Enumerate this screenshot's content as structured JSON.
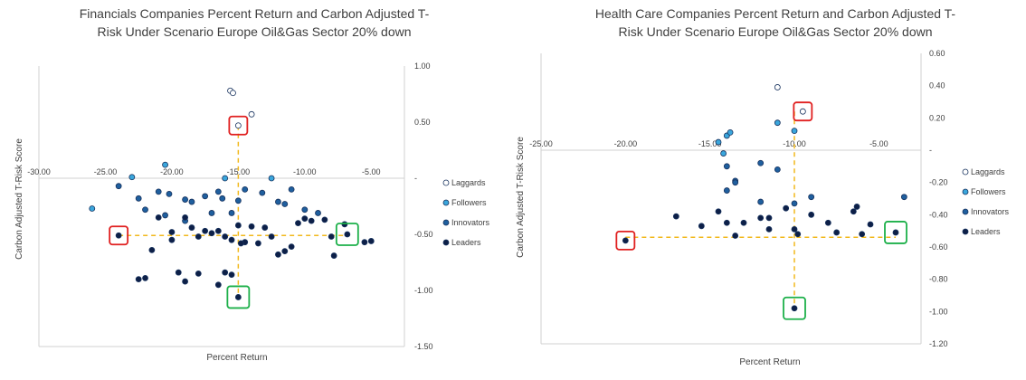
{
  "colors": {
    "Laggards": "#ffffff",
    "Followers": "#3aa6dc",
    "Innovators": "#1f5f9e",
    "Leaders": "#0d1f47",
    "guide": "#f2b81c",
    "red_box": "#e02020",
    "green_box": "#1db04a",
    "axis": "#d0d0d0",
    "text": "#404040"
  },
  "chart_data": [
    {
      "type": "scatter",
      "title": "Financials Companies Percent Return and Carbon Adjusted T-Risk Under Scenario Europe Oil&Gas Sector 20% down",
      "title_lines": [
        "Financials Companies Percent Return and Carbon Adjusted T-",
        "Risk Under Scenario Europe Oil&Gas Sector 20% down"
      ],
      "xlabel": "Percent Return",
      "ylabel": "Carbon Adjusted T-Risk Score",
      "xlim": [
        -30,
        -2.5
      ],
      "ylim": [
        -1.5,
        1.0
      ],
      "xticks": [
        "-30.00",
        "-25.00",
        "-20.00",
        "-15.00",
        "-10.00",
        "-5.00"
      ],
      "yticks": [
        "1.00",
        "0.50",
        "-",
        "-0.50",
        "-1.00",
        "-1.50"
      ],
      "legend": [
        "Laggards",
        "Followers",
        "Innovators",
        "Leaders"
      ],
      "legend_position": "right",
      "series": [
        {
          "name": "Laggards",
          "points": [
            [
              -15.6,
              0.78
            ],
            [
              -15.4,
              0.76
            ],
            [
              -14.0,
              0.57
            ],
            [
              -15.0,
              0.47
            ]
          ]
        },
        {
          "name": "Followers",
          "points": [
            [
              -23.0,
              0.01
            ],
            [
              -20.5,
              0.12
            ],
            [
              -16.0,
              0.0
            ],
            [
              -12.5,
              0.0
            ],
            [
              -26.0,
              -0.27
            ]
          ]
        },
        {
          "name": "Innovators",
          "points": [
            [
              -24.0,
              -0.07
            ],
            [
              -22.5,
              -0.18
            ],
            [
              -21.0,
              -0.12
            ],
            [
              -20.2,
              -0.14
            ],
            [
              -19.0,
              -0.19
            ],
            [
              -18.5,
              -0.21
            ],
            [
              -17.5,
              -0.16
            ],
            [
              -16.5,
              -0.12
            ],
            [
              -16.2,
              -0.18
            ],
            [
              -15.0,
              -0.2
            ],
            [
              -14.5,
              -0.1
            ],
            [
              -13.2,
              -0.13
            ],
            [
              -12.0,
              -0.21
            ],
            [
              -11.0,
              -0.1
            ],
            [
              -11.5,
              -0.23
            ],
            [
              -10.0,
              -0.28
            ],
            [
              -9.0,
              -0.31
            ],
            [
              -22.0,
              -0.28
            ],
            [
              -20.5,
              -0.33
            ],
            [
              -19.0,
              -0.38
            ],
            [
              -17.0,
              -0.31
            ],
            [
              -15.5,
              -0.31
            ]
          ]
        },
        {
          "name": "Leaders",
          "points": [
            [
              -24.0,
              -0.51
            ],
            [
              -6.8,
              -0.5
            ],
            [
              -15.0,
              -1.06
            ],
            [
              -21.0,
              -0.35
            ],
            [
              -20.0,
              -0.48
            ],
            [
              -19.0,
              -0.35
            ],
            [
              -18.5,
              -0.44
            ],
            [
              -18.0,
              -0.52
            ],
            [
              -17.5,
              -0.47
            ],
            [
              -17.0,
              -0.49
            ],
            [
              -16.5,
              -0.47
            ],
            [
              -16.0,
              -0.52
            ],
            [
              -15.5,
              -0.55
            ],
            [
              -15.0,
              -0.42
            ],
            [
              -14.5,
              -0.57
            ],
            [
              -14.0,
              -0.43
            ],
            [
              -13.5,
              -0.58
            ],
            [
              -13.0,
              -0.44
            ],
            [
              -12.5,
              -0.52
            ],
            [
              -12.0,
              -0.68
            ],
            [
              -11.5,
              -0.65
            ],
            [
              -11.0,
              -0.61
            ],
            [
              -10.0,
              -0.36
            ],
            [
              -9.5,
              -0.38
            ],
            [
              -8.5,
              -0.37
            ],
            [
              -8.0,
              -0.52
            ],
            [
              -7.8,
              -0.69
            ],
            [
              -7.0,
              -0.41
            ],
            [
              -22.5,
              -0.9
            ],
            [
              -21.5,
              -0.64
            ],
            [
              -22.0,
              -0.89
            ],
            [
              -20.0,
              -0.55
            ],
            [
              -19.5,
              -0.84
            ],
            [
              -19.0,
              -0.92
            ],
            [
              -18.0,
              -0.85
            ],
            [
              -16.5,
              -0.95
            ],
            [
              -16.0,
              -0.84
            ],
            [
              -15.5,
              -0.86
            ],
            [
              -14.8,
              -0.58
            ],
            [
              -10.5,
              -0.4
            ],
            [
              -5.0,
              -0.56
            ],
            [
              -5.5,
              -0.57
            ]
          ]
        }
      ],
      "guides": {
        "x": -15.0,
        "y": -0.51,
        "x_from_y": 0.47,
        "x_to_y": -1.06,
        "y_from_x": -24.0,
        "y_to_x": -6.8
      },
      "highlight_red": [
        [
          -15.0,
          0.47
        ],
        [
          -24.0,
          -0.51
        ]
      ],
      "highlight_green": [
        [
          -6.8,
          -0.5
        ],
        [
          -15.0,
          -1.06
        ]
      ]
    },
    {
      "type": "scatter",
      "title": "Health Care Companies Percent Return and Carbon Adjusted T-Risk Under Scenario Europe Oil&Gas Sector 20% down",
      "title_lines": [
        "Health Care Companies Percent Return and Carbon Adjusted T-",
        "Risk Under Scenario Europe Oil&Gas Sector 20% down"
      ],
      "xlabel": "Percent Return",
      "ylabel": "Carbon Adjusted T-Risk Score",
      "xlim": [
        -25,
        -2.5
      ],
      "ylim": [
        -1.2,
        0.6
      ],
      "xticks": [
        "-25.00",
        "-20.00",
        "-15.00",
        "-10.00",
        "-5.00"
      ],
      "yticks": [
        "0.60",
        "0.40",
        "0.20",
        "-",
        "-0.20",
        "-0.40",
        "-0.60",
        "-0.80",
        "-1.00",
        "-1.20"
      ],
      "legend": [
        "Laggards",
        "Followers",
        "Innovators",
        "Leaders"
      ],
      "legend_position": "right",
      "series": [
        {
          "name": "Laggards",
          "points": [
            [
              -11.0,
              0.39
            ],
            [
              -9.5,
              0.24
            ]
          ]
        },
        {
          "name": "Followers",
          "points": [
            [
              -14.5,
              0.05
            ],
            [
              -14.0,
              0.09
            ],
            [
              -13.8,
              0.11
            ],
            [
              -11.0,
              0.17
            ],
            [
              -10.0,
              0.12
            ],
            [
              -14.2,
              -0.02
            ]
          ]
        },
        {
          "name": "Innovators",
          "points": [
            [
              -14.0,
              -0.1
            ],
            [
              -13.5,
              -0.19
            ],
            [
              -13.5,
              -0.2
            ],
            [
              -12.0,
              -0.08
            ],
            [
              -11.0,
              -0.12
            ],
            [
              -14.0,
              -0.25
            ],
            [
              -12.0,
              -0.32
            ],
            [
              -10.0,
              -0.33
            ],
            [
              -9.0,
              -0.29
            ],
            [
              -3.5,
              -0.29
            ]
          ]
        },
        {
          "name": "Leaders",
          "points": [
            [
              -20.0,
              -0.56
            ],
            [
              -4.0,
              -0.51
            ],
            [
              -10.0,
              -0.98
            ],
            [
              -17.0,
              -0.41
            ],
            [
              -15.5,
              -0.47
            ],
            [
              -14.5,
              -0.38
            ],
            [
              -14.0,
              -0.45
            ],
            [
              -13.5,
              -0.53
            ],
            [
              -13.0,
              -0.45
            ],
            [
              -12.0,
              -0.42
            ],
            [
              -11.5,
              -0.42
            ],
            [
              -11.5,
              -0.49
            ],
            [
              -10.5,
              -0.36
            ],
            [
              -10.0,
              -0.49
            ],
            [
              -9.8,
              -0.52
            ],
            [
              -9.0,
              -0.4
            ],
            [
              -8.0,
              -0.45
            ],
            [
              -7.5,
              -0.51
            ],
            [
              -6.5,
              -0.38
            ],
            [
              -6.3,
              -0.35
            ],
            [
              -6.0,
              -0.52
            ],
            [
              -5.5,
              -0.46
            ]
          ]
        }
      ],
      "guides": {
        "x": -10.0,
        "y": -0.54,
        "x_from_y": 0.24,
        "x_to_y": -0.98,
        "y_from_x": -20.0,
        "y_to_x": -4.0
      },
      "highlight_red": [
        [
          -9.5,
          0.24
        ],
        [
          -20.0,
          -0.56
        ]
      ],
      "highlight_green": [
        [
          -4.0,
          -0.51
        ],
        [
          -10.0,
          -0.98
        ]
      ]
    }
  ]
}
